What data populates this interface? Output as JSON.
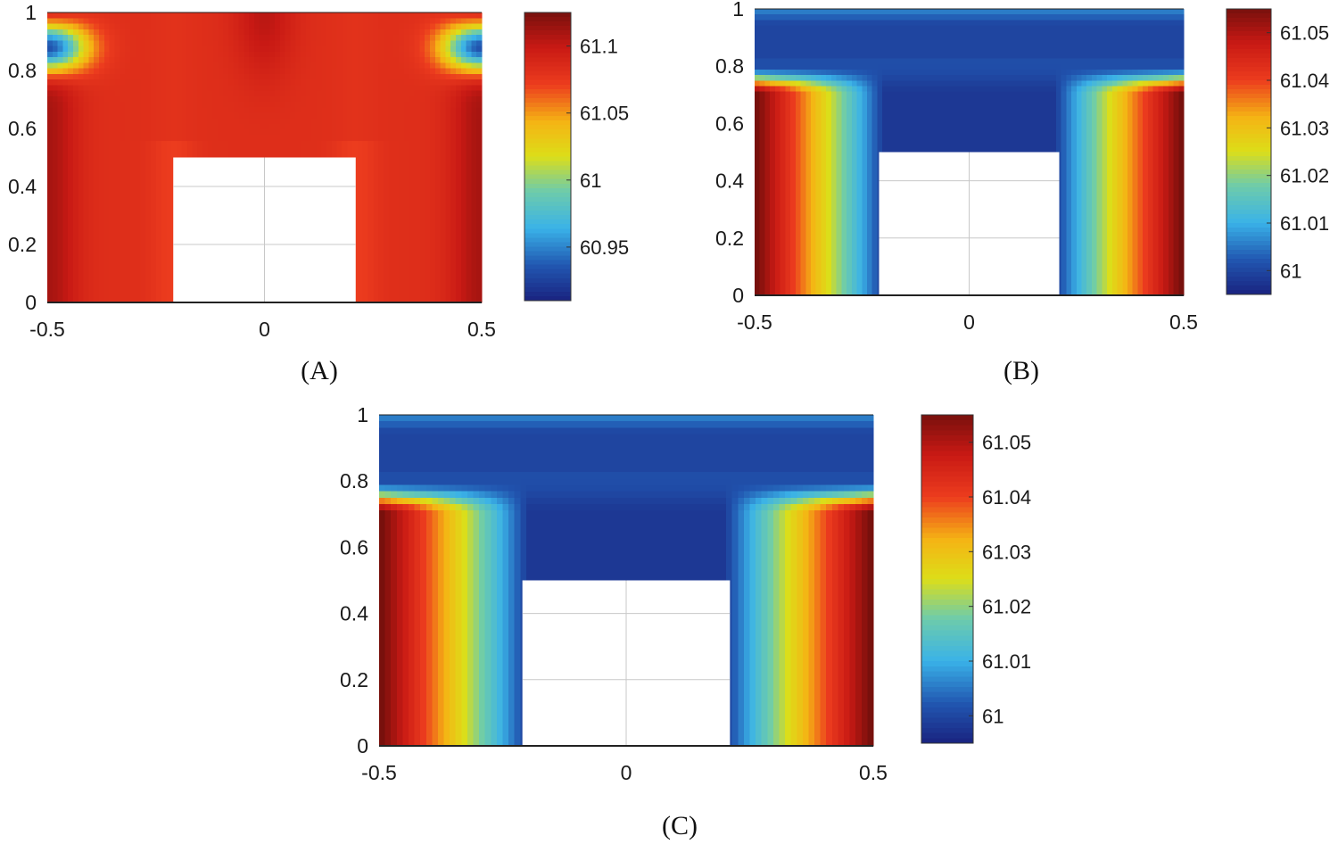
{
  "chart_data": [
    {
      "type": "heatmap",
      "title": "",
      "caption": "(A)",
      "xlabel": "",
      "ylabel": "",
      "xlim": [
        -0.5,
        0.5
      ],
      "ylim": [
        0,
        1
      ],
      "xticks": [
        "-0.5",
        "0",
        "0.5"
      ],
      "yticks": [
        "0",
        "0.2",
        "0.4",
        "0.6",
        "0.8",
        "1"
      ],
      "obstacle": {
        "x": [
          -0.21,
          0.21
        ],
        "y": [
          0,
          0.5
        ]
      },
      "colorbar": {
        "range": [
          60.91,
          61.125
        ],
        "ticks": [
          "60.95",
          "61",
          "61.05",
          "61.1"
        ],
        "tick_values": [
          60.95,
          61.0,
          61.05,
          61.1
        ]
      },
      "features": [
        "low minima at (-0.5, 0.88) and (0.5, 0.88), value approx 60.95",
        "high values approx 61.1 near left/right walls and top center",
        "approx 61.08 plateau elsewhere"
      ]
    },
    {
      "type": "heatmap",
      "title": "",
      "caption": "(B)",
      "xlabel": "",
      "ylabel": "",
      "xlim": [
        -0.5,
        0.5
      ],
      "ylim": [
        0,
        1
      ],
      "xticks": [
        "-0.5",
        "0",
        "0.5"
      ],
      "yticks": [
        "0",
        "0.2",
        "0.4",
        "0.6",
        "0.8",
        "1"
      ],
      "obstacle": {
        "x": [
          -0.21,
          0.21
        ],
        "y": [
          0,
          0.5
        ]
      },
      "colorbar": {
        "range": [
          60.995,
          61.055
        ],
        "ticks": [
          "61",
          "61.01",
          "61.02",
          "61.03",
          "61.04",
          "61.05"
        ],
        "tick_values": [
          61.0,
          61.01,
          61.02,
          61.03,
          61.04,
          61.05
        ]
      },
      "features": [
        "low band approx 61.0 near y = 0.8 to 1",
        "low dome approx 61.0 above obstacle top",
        "high approx 61.05 near bottom left/right walls"
      ]
    },
    {
      "type": "heatmap",
      "title": "",
      "caption": "(C)",
      "xlabel": "",
      "ylabel": "",
      "xlim": [
        -0.5,
        0.5
      ],
      "ylim": [
        0,
        1
      ],
      "xticks": [
        "-0.5",
        "0",
        "0.5"
      ],
      "yticks": [
        "0",
        "0.2",
        "0.4",
        "0.6",
        "0.8",
        "1"
      ],
      "obstacle": {
        "x": [
          -0.21,
          0.21
        ],
        "y": [
          0,
          0.5
        ]
      },
      "colorbar": {
        "range": [
          60.995,
          61.055
        ],
        "ticks": [
          "61",
          "61.01",
          "61.02",
          "61.03",
          "61.04",
          "61.05"
        ],
        "tick_values": [
          61.0,
          61.01,
          61.02,
          61.03,
          61.04,
          61.05
        ]
      },
      "features": [
        "low band approx 61.0 near y = 0.8 to 1",
        "low dome approx 61.0 above obstacle top",
        "high approx 61.05 near bottom left/right walls"
      ]
    }
  ]
}
